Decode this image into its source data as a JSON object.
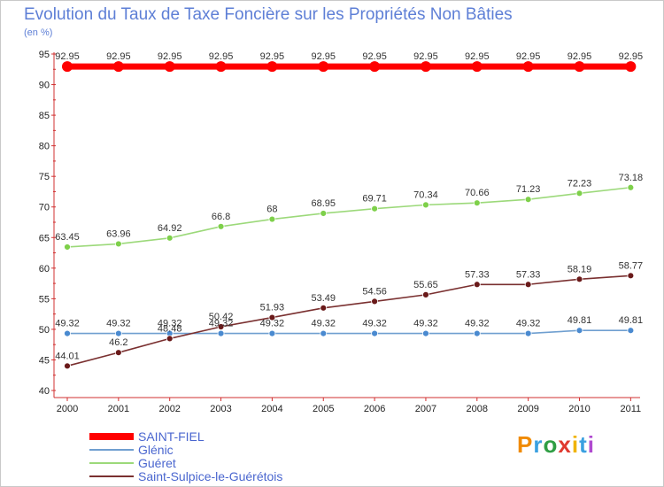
{
  "title": "Evolution du Taux de Taxe Foncière sur les Propriétés Non Bâties",
  "unit": "(en %)",
  "logo": [
    "P",
    "r",
    "o",
    "x",
    "i",
    "t",
    "i"
  ],
  "logo_colors": [
    "#f08a00",
    "#3aa0e0",
    "#2f9e44",
    "#e03a2f",
    "#f0b400",
    "#3aa0e0",
    "#b04ad0"
  ],
  "chart_data": {
    "type": "line",
    "title": "Evolution du Taux de Taxe Foncière sur les Propriétés Non Bâties",
    "ylabel": "(en %)",
    "xlabel": "",
    "ylim": [
      40,
      95
    ],
    "yticks": [
      40,
      45,
      50,
      55,
      60,
      65,
      70,
      75,
      80,
      85,
      90,
      95
    ],
    "grid": false,
    "categories": [
      "2000",
      "2001",
      "2002",
      "2003",
      "2004",
      "2005",
      "2006",
      "2007",
      "2008",
      "2009",
      "2010",
      "2011"
    ],
    "series": [
      {
        "name": "SAINT-FIEL",
        "color": "#ff0000",
        "marker": "#ff0000",
        "values": [
          92.95,
          92.95,
          92.95,
          92.95,
          92.95,
          92.95,
          92.95,
          92.95,
          92.95,
          92.95,
          92.95,
          92.95
        ],
        "labels": [
          "92.95",
          "92.95",
          "92.95",
          "92.95",
          "92.95",
          "92.95",
          "92.95",
          "92.95",
          "92.95",
          "92.95",
          "92.95",
          "92.95"
        ]
      },
      {
        "name": "Glénic",
        "color": "#6f9fd0",
        "marker": "#4a8ad0",
        "values": [
          49.32,
          49.32,
          49.32,
          49.32,
          49.32,
          49.32,
          49.32,
          49.32,
          49.32,
          49.32,
          49.81,
          49.81
        ],
        "labels": [
          "49.32",
          "49.32",
          "49.32",
          "49.32",
          "49.32",
          "49.32",
          "49.32",
          "49.32",
          "49.32",
          "49.32",
          "49.81",
          "49.81"
        ]
      },
      {
        "name": "Guéret",
        "color": "#9cd97a",
        "marker": "#7ed04a",
        "values": [
          63.45,
          63.96,
          64.92,
          66.8,
          68,
          68.95,
          69.71,
          70.34,
          70.66,
          71.23,
          72.23,
          73.18
        ],
        "labels": [
          "63.45",
          "63.96",
          "64.92",
          "66.8",
          "68",
          "68.95",
          "69.71",
          "70.34",
          "70.66",
          "71.23",
          "72.23",
          "73.18"
        ]
      },
      {
        "name": "Saint-Sulpice-le-Guérétois",
        "color": "#7a3030",
        "marker": "#6a1a1a",
        "values": [
          44.01,
          46.2,
          48.48,
          50.42,
          51.93,
          53.49,
          54.56,
          55.65,
          57.33,
          57.33,
          58.19,
          58.77
        ],
        "labels": [
          "44.01",
          "46.2",
          "48.48",
          "50.42",
          "51.93",
          "53.49",
          "54.56",
          "55.65",
          "57.33",
          "57.33",
          "58.19",
          "58.77"
        ]
      }
    ]
  }
}
